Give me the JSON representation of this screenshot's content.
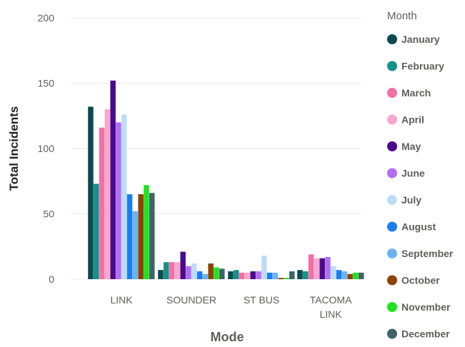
{
  "chart_data": {
    "type": "bar",
    "title": "",
    "xlabel": "Mode",
    "ylabel": "Total Incidents",
    "ylim": [
      0,
      200
    ],
    "yticks": [
      0,
      50,
      100,
      150,
      200
    ],
    "grid": true,
    "legend_title": "Month",
    "legend_position": "right",
    "categories": [
      "LINK",
      "SOUNDER",
      "ST BUS",
      "TACOMA LINK"
    ],
    "series": [
      {
        "name": "January",
        "color": "#0b4a4f",
        "values": [
          132,
          7,
          6,
          7
        ]
      },
      {
        "name": "February",
        "color": "#149189",
        "values": [
          73,
          13,
          7,
          6
        ]
      },
      {
        "name": "March",
        "color": "#f46fa5",
        "values": [
          116,
          13,
          5,
          19
        ]
      },
      {
        "name": "April",
        "color": "#f7a8cf",
        "values": [
          130,
          13,
          5,
          16
        ]
      },
      {
        "name": "May",
        "color": "#4b0a8c",
        "values": [
          152,
          21,
          6,
          16
        ]
      },
      {
        "name": "June",
        "color": "#b06ef0",
        "values": [
          120,
          10,
          6,
          17
        ]
      },
      {
        "name": "July",
        "color": "#bedcf7",
        "values": [
          126,
          12,
          18,
          10
        ]
      },
      {
        "name": "August",
        "color": "#1a7ef0",
        "values": [
          65,
          6,
          5,
          7
        ]
      },
      {
        "name": "September",
        "color": "#6cb3ef",
        "values": [
          52,
          4,
          5,
          6
        ]
      },
      {
        "name": "October",
        "color": "#8c4200",
        "values": [
          65,
          12,
          1,
          4
        ]
      },
      {
        "name": "November",
        "color": "#1ee31e",
        "values": [
          72,
          9,
          1,
          5
        ]
      },
      {
        "name": "December",
        "color": "#3d6468",
        "values": [
          66,
          8,
          6,
          5
        ]
      }
    ]
  }
}
